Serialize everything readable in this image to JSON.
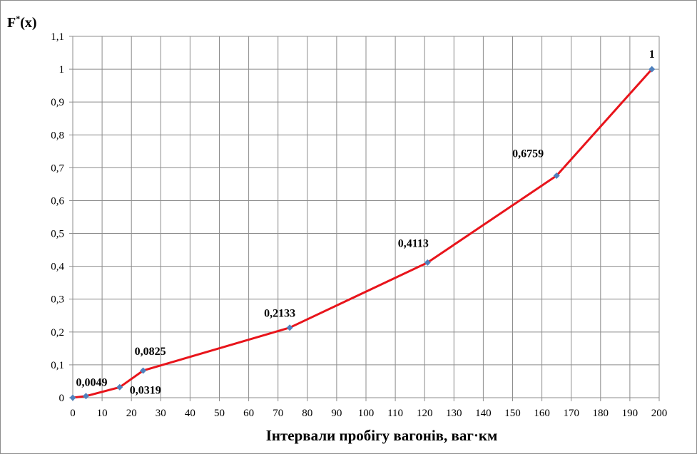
{
  "chart_data": {
    "type": "line",
    "title": "",
    "ylabel_main": "F",
    "ylabel_sup": "*",
    "ylabel_tail": "(x)",
    "xlabel": "Інтервали пробігу вагонів, ваг·км",
    "xlim": [
      0,
      200
    ],
    "ylim": [
      0,
      1.1
    ],
    "x_ticks": [
      "0",
      "10",
      "20",
      "30",
      "40",
      "50",
      "60",
      "70",
      "80",
      "90",
      "100",
      "110",
      "120",
      "130",
      "140",
      "150",
      "160",
      "170",
      "180",
      "190",
      "200"
    ],
    "y_ticks": [
      "0",
      "0,1",
      "0,2",
      "0,3",
      "0,4",
      "0,5",
      "0,6",
      "0,7",
      "0,8",
      "0,9",
      "1",
      "1,1"
    ],
    "grid": true,
    "series": [
      {
        "x": [
          0,
          4.5,
          16,
          24,
          74,
          121,
          165,
          197.5
        ],
        "y": [
          0,
          0.0049,
          0.0319,
          0.0825,
          0.2133,
          0.4113,
          0.6759,
          1
        ],
        "labels": [
          "",
          "0,0049",
          "0,0319",
          "0,0825",
          "0,2133",
          "0,4113",
          "0,6759",
          "1"
        ],
        "line_color": "#e8141b",
        "marker_color": "#4f81bd"
      }
    ]
  }
}
